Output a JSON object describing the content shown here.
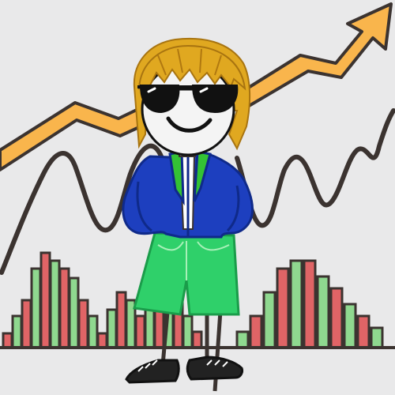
{
  "scene": {
    "description_free": true,
    "colors": {
      "background": "#e9e9ea",
      "arrow": "#f9b54c",
      "outline": "#3b3330",
      "wave": "#3b3330",
      "bar_red": "#e06466",
      "bar_green": "#8fd88f",
      "jacket": "#1d3fbf",
      "collar": "#34c234",
      "shorts": "#2fd06a",
      "hair": "#e0a820",
      "skin": "#f4f4f4",
      "glasses": "#111111",
      "shoe": "#222222"
    },
    "icons": [
      "upward-trend-arrow",
      "stock-wave-line",
      "candlestick-bars",
      "cartoon-investor"
    ]
  }
}
